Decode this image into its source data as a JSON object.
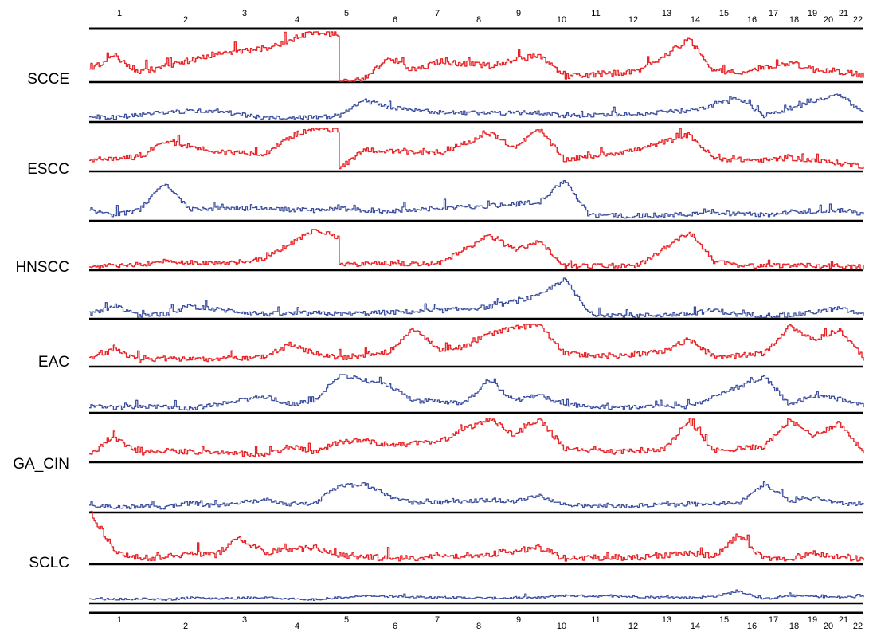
{
  "chart_data": {
    "type": "line",
    "chromosomes": [
      "1",
      "2",
      "3",
      "4",
      "5",
      "6",
      "7",
      "8",
      "9",
      "10",
      "11",
      "12",
      "13",
      "14",
      "15",
      "16",
      "17",
      "18",
      "19",
      "20",
      "21",
      "22"
    ],
    "gain_color": "#e8262a",
    "loss_color": "#3d50a0",
    "rows": [
      {
        "label": "SCCE",
        "gain": [
          [
            0,
            0.22
          ],
          [
            1,
            0.52
          ],
          [
            2,
            0.18
          ],
          [
            3,
            0.3
          ],
          [
            5,
            0.55
          ],
          [
            7,
            0.66
          ],
          [
            9,
            1.0
          ],
          [
            9.98,
            0.95
          ],
          [
            10,
            0
          ],
          [
            11,
            0.05
          ],
          [
            12,
            0.48
          ],
          [
            13,
            0.22
          ],
          [
            14,
            0.4
          ],
          [
            16,
            0.32
          ],
          [
            18,
            0.54
          ],
          [
            19,
            0.1
          ],
          [
            22,
            0.2
          ],
          [
            24,
            0.85
          ],
          [
            25,
            0.22
          ],
          [
            26,
            0.18
          ],
          [
            28,
            0.38
          ],
          [
            29,
            0.24
          ],
          [
            30,
            0.2
          ],
          [
            31,
            0.12
          ]
        ],
        "loss": [
          [
            0,
            0.12
          ],
          [
            1,
            0.1
          ],
          [
            2,
            0.18
          ],
          [
            3,
            0.25
          ],
          [
            5,
            0.3
          ],
          [
            7,
            0.08
          ],
          [
            9,
            0.1
          ],
          [
            10,
            0.15
          ],
          [
            11,
            0.58
          ],
          [
            12,
            0.38
          ],
          [
            14,
            0.25
          ],
          [
            16,
            0.22
          ],
          [
            18,
            0.24
          ],
          [
            19,
            0.15
          ],
          [
            22,
            0.2
          ],
          [
            24,
            0.3
          ],
          [
            25,
            0.45
          ],
          [
            26,
            0.65
          ],
          [
            27,
            0.15
          ],
          [
            28,
            0.35
          ],
          [
            30,
            0.75
          ],
          [
            31,
            0.2
          ]
        ]
      },
      {
        "label": "ESCC",
        "gain": [
          [
            0,
            0.22
          ],
          [
            1,
            0.3
          ],
          [
            2,
            0.32
          ],
          [
            3,
            0.7
          ],
          [
            5,
            0.45
          ],
          [
            7,
            0.4
          ],
          [
            8.2,
            0.85
          ],
          [
            9,
            1.0
          ],
          [
            9.98,
            0.95
          ],
          [
            10,
            0.05
          ],
          [
            11,
            0.5
          ],
          [
            12,
            0.45
          ],
          [
            14,
            0.4
          ],
          [
            16,
            0.88
          ],
          [
            17,
            0.55
          ],
          [
            18,
            0.98
          ],
          [
            19,
            0.25
          ],
          [
            22,
            0.5
          ],
          [
            24,
            0.85
          ],
          [
            25,
            0.28
          ],
          [
            27,
            0.24
          ],
          [
            28,
            0.3
          ],
          [
            30,
            0.18
          ],
          [
            31,
            0.1
          ]
        ],
        "loss": [
          [
            0,
            0.22
          ],
          [
            1,
            0.12
          ],
          [
            2,
            0.25
          ],
          [
            3,
            0.92
          ],
          [
            4,
            0.25
          ],
          [
            5,
            0.3
          ],
          [
            7,
            0.28
          ],
          [
            9,
            0.24
          ],
          [
            10,
            0.28
          ],
          [
            12,
            0.22
          ],
          [
            14,
            0.3
          ],
          [
            16,
            0.35
          ],
          [
            18,
            0.45
          ],
          [
            19,
            1.0
          ],
          [
            20,
            0.12
          ],
          [
            22,
            0.1
          ],
          [
            24,
            0.15
          ],
          [
            25,
            0.18
          ],
          [
            27,
            0.12
          ],
          [
            28,
            0.2
          ],
          [
            30,
            0.25
          ],
          [
            31,
            0.15
          ]
        ]
      },
      {
        "label": "HNSCC",
        "gain": [
          [
            0,
            0.05
          ],
          [
            1,
            0.08
          ],
          [
            2,
            0.12
          ],
          [
            3,
            0.2
          ],
          [
            4,
            0.18
          ],
          [
            5,
            0.15
          ],
          [
            6,
            0.2
          ],
          [
            7,
            0.28
          ],
          [
            9,
            1.0
          ],
          [
            9.98,
            0.8
          ],
          [
            10,
            0.12
          ],
          [
            12,
            0.15
          ],
          [
            14,
            0.14
          ],
          [
            16,
            0.85
          ],
          [
            17,
            0.5
          ],
          [
            18,
            0.7
          ],
          [
            19,
            0.08
          ],
          [
            22,
            0.1
          ],
          [
            24,
            0.95
          ],
          [
            25,
            0.2
          ],
          [
            26,
            0.08
          ],
          [
            28,
            0.1
          ],
          [
            30,
            0.08
          ],
          [
            31,
            0.06
          ]
        ],
        "loss": [
          [
            0,
            0.1
          ],
          [
            1,
            0.3
          ],
          [
            2,
            0.06
          ],
          [
            3,
            0.1
          ],
          [
            4,
            0.3
          ],
          [
            5,
            0.22
          ],
          [
            7,
            0.1
          ],
          [
            9,
            0.12
          ],
          [
            10,
            0.1
          ],
          [
            12,
            0.14
          ],
          [
            14,
            0.18
          ],
          [
            16,
            0.28
          ],
          [
            18,
            0.55
          ],
          [
            19,
            1.0
          ],
          [
            20,
            0.1
          ],
          [
            22,
            0.06
          ],
          [
            24,
            0.1
          ],
          [
            25,
            0.2
          ],
          [
            26,
            0.08
          ],
          [
            28,
            0.06
          ],
          [
            30,
            0.24
          ],
          [
            31,
            0.08
          ]
        ]
      },
      {
        "label": "EAC",
        "gain": [
          [
            0,
            0.2
          ],
          [
            1,
            0.38
          ],
          [
            2,
            0.12
          ],
          [
            3,
            0.18
          ],
          [
            5,
            0.15
          ],
          [
            7,
            0.22
          ],
          [
            8,
            0.5
          ],
          [
            9,
            0.3
          ],
          [
            10,
            0.18
          ],
          [
            12,
            0.35
          ],
          [
            13,
            0.9
          ],
          [
            14,
            0.4
          ],
          [
            15,
            0.45
          ],
          [
            16,
            0.78
          ],
          [
            17,
            0.92
          ],
          [
            18,
            0.98
          ],
          [
            19,
            0.3
          ],
          [
            21,
            0.22
          ],
          [
            23,
            0.35
          ],
          [
            24,
            0.65
          ],
          [
            25,
            0.2
          ],
          [
            27,
            0.3
          ],
          [
            28,
            0.95
          ],
          [
            29,
            0.62
          ],
          [
            30,
            0.88
          ],
          [
            31,
            0.18
          ]
        ],
        "loss": [
          [
            0,
            0.15
          ],
          [
            1,
            0.12
          ],
          [
            2,
            0.16
          ],
          [
            3,
            0.14
          ],
          [
            4,
            0.1
          ],
          [
            5,
            0.18
          ],
          [
            7,
            0.42
          ],
          [
            8,
            0.22
          ],
          [
            9,
            0.28
          ],
          [
            10,
            1.0
          ],
          [
            11,
            0.85
          ],
          [
            12,
            0.7
          ],
          [
            13,
            0.3
          ],
          [
            15,
            0.25
          ],
          [
            16,
            0.85
          ],
          [
            17,
            0.3
          ],
          [
            18,
            0.45
          ],
          [
            19,
            0.2
          ],
          [
            21,
            0.12
          ],
          [
            24,
            0.15
          ],
          [
            27,
            0.95
          ],
          [
            28,
            0.2
          ],
          [
            29,
            0.45
          ],
          [
            30,
            0.35
          ],
          [
            31,
            0.18
          ]
        ]
      },
      {
        "label": "GA_CIN",
        "gain": [
          [
            0,
            0.18
          ],
          [
            1,
            0.55
          ],
          [
            2,
            0.18
          ],
          [
            3,
            0.25
          ],
          [
            5,
            0.2
          ],
          [
            7,
            0.15
          ],
          [
            8,
            0.35
          ],
          [
            9,
            0.22
          ],
          [
            10,
            0.45
          ],
          [
            11,
            0.5
          ],
          [
            12,
            0.38
          ],
          [
            14,
            0.45
          ],
          [
            15,
            0.75
          ],
          [
            16,
            0.98
          ],
          [
            17,
            0.62
          ],
          [
            18,
            1.0
          ],
          [
            19,
            0.3
          ],
          [
            21,
            0.22
          ],
          [
            23,
            0.28
          ],
          [
            24,
            0.92
          ],
          [
            25,
            0.25
          ],
          [
            27,
            0.35
          ],
          [
            28,
            0.95
          ],
          [
            29,
            0.6
          ],
          [
            30,
            0.9
          ],
          [
            31,
            0.22
          ]
        ],
        "loss": [
          [
            0,
            0.2
          ],
          [
            1,
            0.12
          ],
          [
            2,
            0.15
          ],
          [
            3,
            0.12
          ],
          [
            4,
            0.25
          ],
          [
            5,
            0.18
          ],
          [
            7,
            0.35
          ],
          [
            8,
            0.22
          ],
          [
            9,
            0.25
          ],
          [
            10,
            0.75
          ],
          [
            11,
            0.8
          ],
          [
            12,
            0.45
          ],
          [
            13,
            0.25
          ],
          [
            15,
            0.3
          ],
          [
            16,
            0.35
          ],
          [
            17,
            0.3
          ],
          [
            18,
            0.45
          ],
          [
            19,
            0.2
          ],
          [
            21,
            0.15
          ],
          [
            24,
            0.22
          ],
          [
            26,
            0.25
          ],
          [
            27,
            0.82
          ],
          [
            28,
            0.3
          ],
          [
            29,
            0.4
          ],
          [
            30,
            0.25
          ],
          [
            31,
            0.18
          ]
        ]
      },
      {
        "label": "SCLC",
        "gain": [
          [
            0,
            1.0
          ],
          [
            1,
            0.25
          ],
          [
            2,
            0.1
          ],
          [
            3,
            0.12
          ],
          [
            4,
            0.18
          ],
          [
            5,
            0.15
          ],
          [
            6,
            0.48
          ],
          [
            7,
            0.22
          ],
          [
            9,
            0.3
          ],
          [
            10,
            0.15
          ],
          [
            12,
            0.1
          ],
          [
            14,
            0.12
          ],
          [
            16,
            0.18
          ],
          [
            18,
            0.3
          ],
          [
            19,
            0.1
          ],
          [
            22,
            0.12
          ],
          [
            24,
            0.2
          ],
          [
            25,
            0.15
          ],
          [
            26,
            0.55
          ],
          [
            27,
            0.08
          ],
          [
            28,
            0.1
          ],
          [
            29,
            0.2
          ],
          [
            30,
            0.12
          ],
          [
            31,
            0.08
          ]
        ],
        "loss": [
          [
            0,
            0.2
          ],
          [
            1,
            0.18
          ],
          [
            2,
            0.22
          ],
          [
            3,
            0.15
          ],
          [
            4,
            0.28
          ],
          [
            5,
            0.22
          ],
          [
            7,
            0.3
          ],
          [
            8,
            0.22
          ],
          [
            9,
            0.18
          ],
          [
            11,
            0.38
          ],
          [
            12,
            0.35
          ],
          [
            14,
            0.3
          ],
          [
            16,
            0.25
          ],
          [
            18,
            0.28
          ],
          [
            19,
            0.4
          ],
          [
            21,
            0.35
          ],
          [
            24,
            0.28
          ],
          [
            25,
            0.35
          ],
          [
            26,
            0.65
          ],
          [
            27,
            0.2
          ],
          [
            28,
            0.4
          ],
          [
            30,
            0.3
          ],
          [
            31,
            0.35
          ]
        ]
      }
    ]
  }
}
